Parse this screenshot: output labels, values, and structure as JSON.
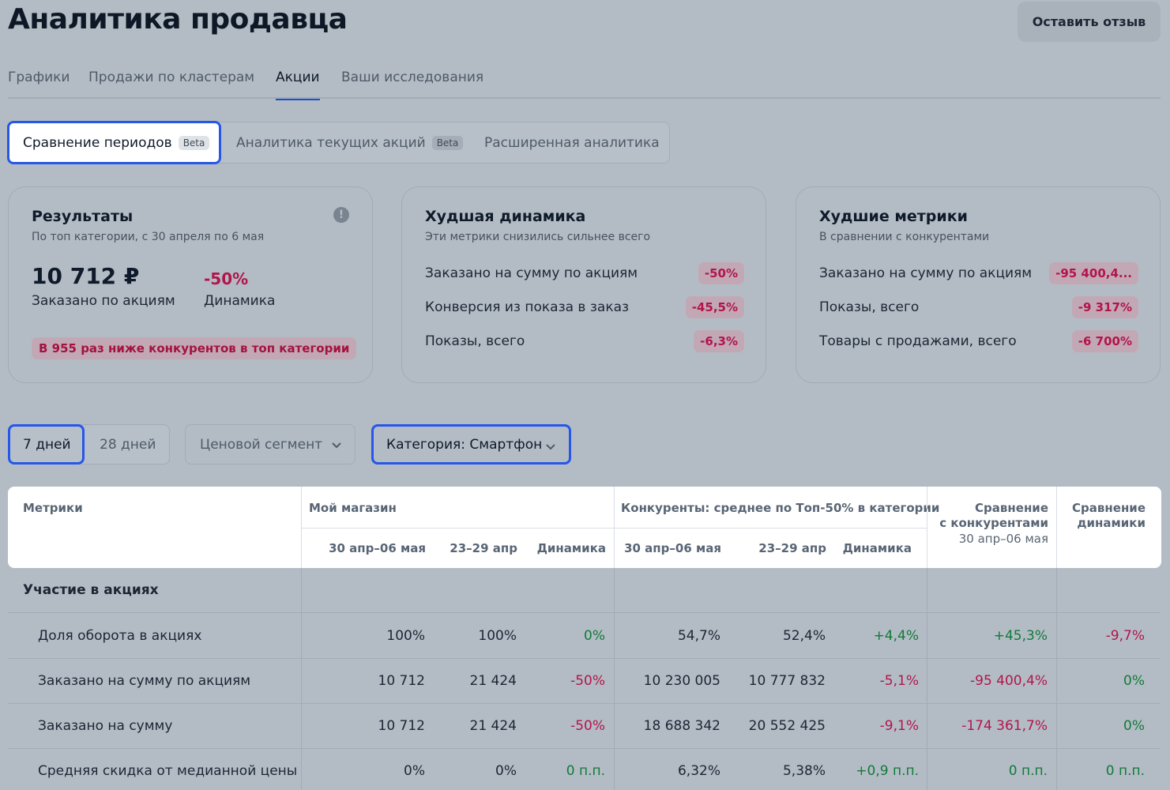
{
  "header": {
    "title": "Аналитика продавца",
    "feedback_label": "Оставить отзыв"
  },
  "tabs": [
    {
      "label": "Графики",
      "active": false
    },
    {
      "label": "Продажи по кластерам",
      "active": false
    },
    {
      "label": "Акции",
      "active": true
    },
    {
      "label": "Ваши исследования",
      "active": false
    }
  ],
  "subtabs": [
    {
      "label": "Сравнение периодов",
      "badge": "Beta",
      "active": true
    },
    {
      "label": "Аналитика текущих акций",
      "badge": "Beta",
      "active": false
    },
    {
      "label": "Расширенная аналитика",
      "badge": "",
      "active": false
    }
  ],
  "results_card": {
    "title": "Результаты",
    "subtitle": "По топ категории, с 30 апреля по 6 мая",
    "value": "10 712 ₽",
    "value_label": "Заказано по акциям",
    "dynamics": "-50%",
    "dynamics_label": "Динамика",
    "warning": "В 955 раз ниже конкурентов в топ категории"
  },
  "worst_dynamics_card": {
    "title": "Худшая динамика",
    "subtitle": "Эти метрики снизились сильнее всего",
    "rows": [
      {
        "label": "Заказано на сумму по акциям",
        "value": "-50%"
      },
      {
        "label": "Конверсия из показа в заказ",
        "value": "-45,5%"
      },
      {
        "label": "Показы, всего",
        "value": "-6,3%"
      }
    ]
  },
  "worst_metrics_card": {
    "title": "Худшие метрики",
    "subtitle": "В сравнении с конкурентами",
    "rows": [
      {
        "label": "Заказано на сумму по акциям",
        "value": "-95 400,4..."
      },
      {
        "label": "Показы, всего",
        "value": "-9 317%"
      },
      {
        "label": "Товары с продажами, всего",
        "value": "-6 700%"
      }
    ]
  },
  "filters": {
    "period_options": [
      "7 дней",
      "28 дней"
    ],
    "selected_period": "7 дней",
    "price_segment": "Ценовой сегмент",
    "category": "Категория: Смартфон"
  },
  "table": {
    "headers": {
      "metrics": "Метрики",
      "my_store": "Мой магазин",
      "competitors": "Конкуренты: среднее по Топ-50% в категории",
      "compare_competitors_l1": "Сравнение",
      "compare_competitors_l2": "с конкурентами",
      "compare_competitors_period": "30 апр–06 мая",
      "compare_dynamics_l1": "Сравнение",
      "compare_dynamics_l2": "динамики",
      "sub": [
        "30 апр–06 мая",
        "23–29 апр",
        "Динамика",
        "30 апр–06 мая",
        "23–29 апр",
        "Динамика"
      ]
    },
    "section_title": "Участие в акциях",
    "rows": [
      {
        "label": "Доля оборота в акциях",
        "my_cur": "100%",
        "my_prev": "100%",
        "my_dyn": "0%",
        "my_dyn_color": "green",
        "comp_cur": "54,7%",
        "comp_prev": "52,4%",
        "comp_dyn": "+4,4%",
        "comp_dyn_color": "green",
        "vs_comp": "+45,3%",
        "vs_comp_color": "green",
        "vs_dyn": "-9,7%",
        "vs_dyn_color": "red"
      },
      {
        "label": "Заказано на сумму по акциям",
        "my_cur": "10 712",
        "my_prev": "21 424",
        "my_dyn": "-50%",
        "my_dyn_color": "red",
        "comp_cur": "10 230 005",
        "comp_prev": "10 777 832",
        "comp_dyn": "-5,1%",
        "comp_dyn_color": "red",
        "vs_comp": "-95 400,4%",
        "vs_comp_color": "red",
        "vs_dyn": "0%",
        "vs_dyn_color": "green"
      },
      {
        "label": "Заказано на сумму",
        "my_cur": "10 712",
        "my_prev": "21 424",
        "my_dyn": "-50%",
        "my_dyn_color": "red",
        "comp_cur": "18 688 342",
        "comp_prev": "20 552 425",
        "comp_dyn": "-9,1%",
        "comp_dyn_color": "red",
        "vs_comp": "-174 361,7%",
        "vs_comp_color": "red",
        "vs_dyn": "0%",
        "vs_dyn_color": "green"
      },
      {
        "label": "Средняя скидка от медианной цены",
        "my_cur": "0%",
        "my_prev": "0%",
        "my_dyn": "0 п.п.",
        "my_dyn_color": "green",
        "comp_cur": "6,32%",
        "comp_prev": "5,38%",
        "comp_dyn": "+0,9 п.п.",
        "comp_dyn_color": "green",
        "vs_comp": "0 п.п.",
        "vs_comp_color": "green",
        "vs_dyn": "0 п.п.",
        "vs_dyn_color": "green"
      }
    ]
  },
  "colors": {
    "background": "#b3bcc5",
    "accent": "#2557e8",
    "negative": "#b2154a",
    "positive": "#127a38"
  }
}
